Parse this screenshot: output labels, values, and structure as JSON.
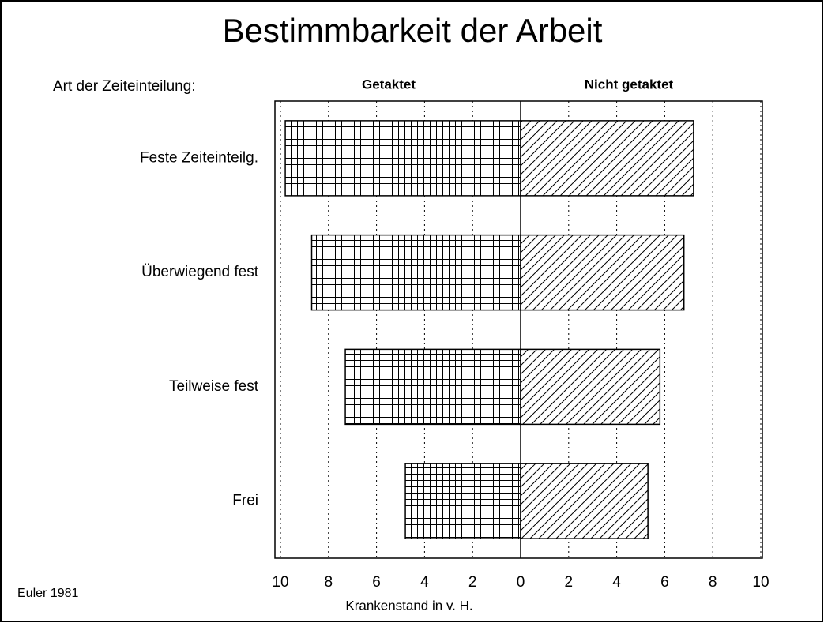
{
  "chart_data": {
    "type": "butterfly",
    "title": "Bestimmbarkeit der Arbeit",
    "category_axis_label": "Art der Zeiteinteilung:",
    "categories": [
      "Feste Zeiteinteilg.",
      "Überwiegend fest",
      "Teilweise fest",
      "Frei"
    ],
    "series": [
      {
        "name": "Getaktet",
        "color": "#000000",
        "pattern": "grid",
        "side": "left",
        "values": [
          9.8,
          8.7,
          7.3,
          4.8
        ]
      },
      {
        "name": "Nicht getaktet",
        "color": "#000000",
        "pattern": "diagonal",
        "side": "right",
        "values": [
          7.2,
          6.8,
          5.8,
          5.3
        ]
      }
    ],
    "xlim": [
      0,
      10
    ],
    "xticks": [
      0,
      2,
      4,
      6,
      8,
      10
    ],
    "xlabel": "Krankenstand in v. H.",
    "source": "Euler 1981",
    "grid": true
  }
}
